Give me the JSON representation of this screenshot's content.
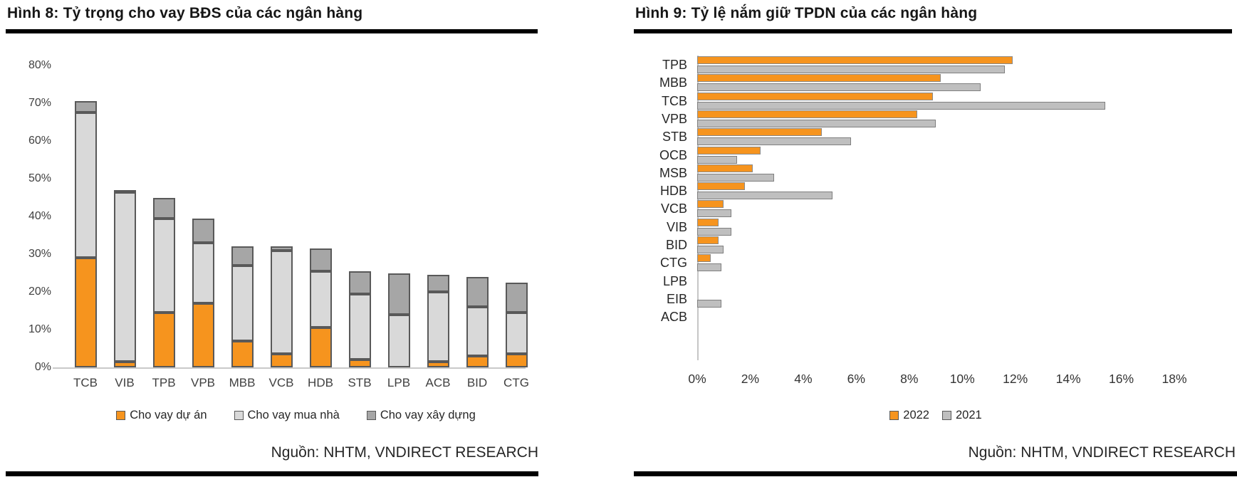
{
  "chart_data": [
    {
      "id": "hinh8",
      "type": "bar",
      "stacked": true,
      "orientation": "vertical",
      "title": "Hình 8: Tỷ trọng cho vay BĐS của các ngân hàng",
      "source": "Nguồn: NHTM, VNDIRECT RESEARCH",
      "categories": [
        "TCB",
        "VIB",
        "TPB",
        "VPB",
        "MBB",
        "VCB",
        "HDB",
        "STB",
        "LPB",
        "ACB",
        "BID",
        "CTG"
      ],
      "series": [
        {
          "name": "Cho vay dự án",
          "color": "#F6941E",
          "values": [
            29,
            1.5,
            14.5,
            17,
            7,
            3.5,
            10.5,
            2,
            0,
            1.5,
            3,
            3.5
          ]
        },
        {
          "name": "Cho vay mua nhà",
          "color": "#D9D9D9",
          "values": [
            38.5,
            45,
            25,
            16,
            20,
            27.5,
            15,
            17.5,
            14,
            18.5,
            13,
            11
          ]
        },
        {
          "name": "Cho vay xây dựng",
          "color": "#A6A6A6",
          "values": [
            3,
            0.5,
            5.5,
            6.5,
            5,
            1,
            6,
            6,
            11,
            4.5,
            8,
            8
          ]
        }
      ],
      "ylim": [
        0,
        80
      ],
      "ytick_step": 10,
      "tick_suffix": "%",
      "grid": false,
      "legend_position": "bottom"
    },
    {
      "id": "hinh9",
      "type": "bar",
      "stacked": false,
      "orientation": "horizontal",
      "title": "Hình 9: Tỷ lệ nắm giữ TPDN của các ngân hàng",
      "source": "Nguồn: NHTM, VNDIRECT RESEARCH",
      "categories": [
        "TPB",
        "MBB",
        "TCB",
        "VPB",
        "STB",
        "OCB",
        "MSB",
        "HDB",
        "VCB",
        "VIB",
        "BID",
        "CTG",
        "LPB",
        "EIB",
        "ACB"
      ],
      "series": [
        {
          "name": "2022",
          "color": "#F6941E",
          "values": [
            11.9,
            9.2,
            8.9,
            8.3,
            4.7,
            2.4,
            2.1,
            1.8,
            1.0,
            0.8,
            0.8,
            0.5,
            0,
            0,
            0
          ]
        },
        {
          "name": "2021",
          "color": "#BFBFBF",
          "values": [
            11.6,
            10.7,
            15.4,
            9.0,
            5.8,
            1.5,
            2.9,
            5.1,
            1.3,
            1.3,
            1.0,
            0.9,
            0,
            0.9,
            0
          ]
        }
      ],
      "xlim": [
        0,
        18
      ],
      "xtick_step": 2,
      "tick_suffix": "%",
      "grid": false,
      "legend_position": "bottom"
    }
  ]
}
